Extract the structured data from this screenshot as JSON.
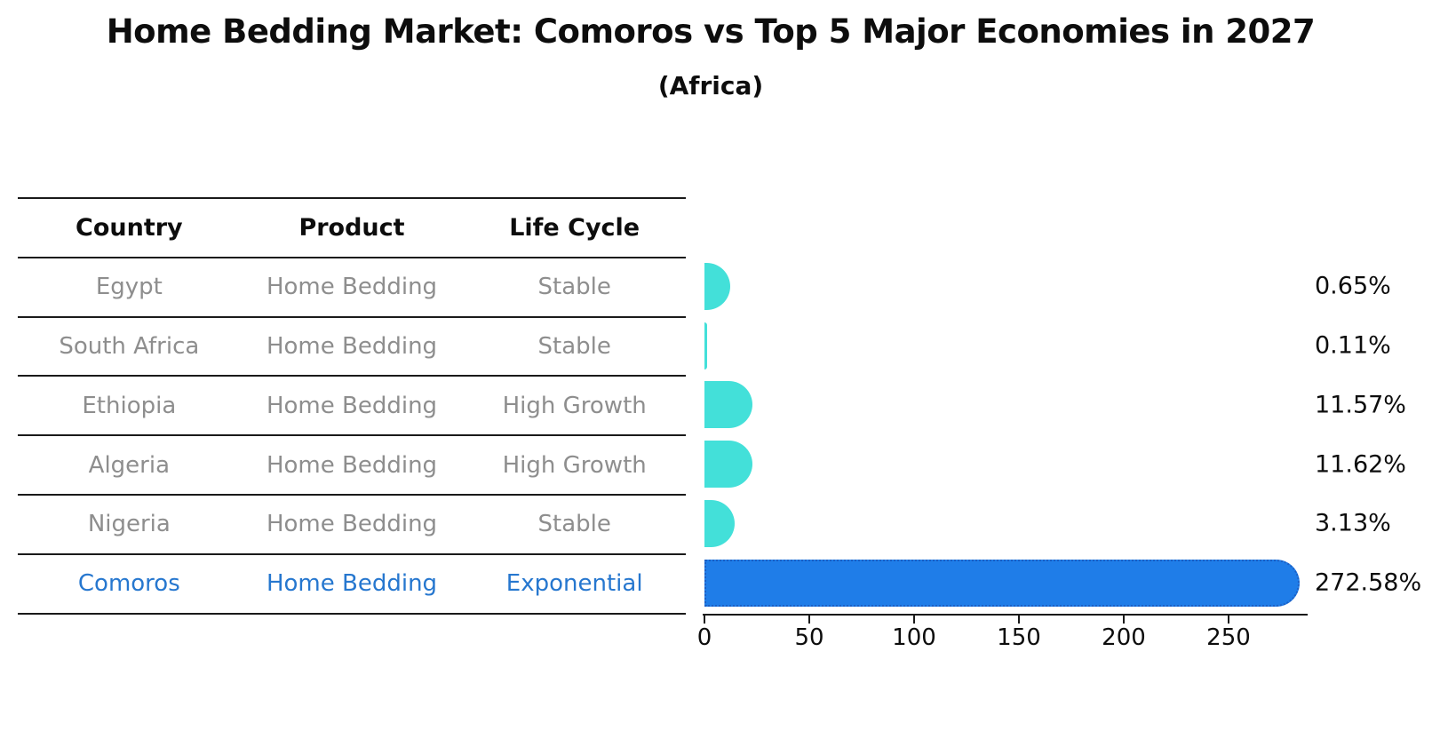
{
  "title": "Home Bedding Market: Comoros vs Top 5 Major Economies in 2027",
  "subtitle": "(Africa)",
  "table": {
    "headers": [
      "Country",
      "Product",
      "Life Cycle"
    ],
    "rows": [
      {
        "country": "Egypt",
        "product": "Home Bedding",
        "life_cycle": "Stable",
        "share": "0.65%"
      },
      {
        "country": "South Africa",
        "product": "Home Bedding",
        "life_cycle": "Stable",
        "share": "0.11%"
      },
      {
        "country": "Ethiopia",
        "product": "Home Bedding",
        "life_cycle": "High Growth",
        "share": "11.57%"
      },
      {
        "country": "Algeria",
        "product": "Home Bedding",
        "life_cycle": "High Growth",
        "share": "11.62%"
      },
      {
        "country": "Nigeria",
        "product": "Home Bedding",
        "life_cycle": "Stable",
        "share": "3.13%"
      },
      {
        "country": "Comoros",
        "product": "Home Bedding",
        "life_cycle": "Exponential",
        "share": "272.58%"
      }
    ]
  },
  "chart_data": {
    "type": "bar",
    "orientation": "horizontal",
    "title": "Home Bedding Market: Comoros vs Top 5 Major Economies in 2027",
    "subtitle": "(Africa)",
    "categories": [
      "Egypt",
      "South Africa",
      "Ethiopia",
      "Algeria",
      "Nigeria",
      "Comoros"
    ],
    "values": [
      0.65,
      0.11,
      11.57,
      11.62,
      3.13,
      272.58
    ],
    "value_labels": [
      "0.65%",
      "0.11%",
      "11.57%",
      "11.62%",
      "3.13%",
      "272.58%"
    ],
    "highlight_index": 5,
    "x_ticks": [
      0,
      50,
      100,
      150,
      200,
      250
    ],
    "xlim": [
      0,
      287
    ],
    "grid": false,
    "legend": "none",
    "xlabel": "",
    "ylabel": "",
    "colors": {
      "bar": "#43e0d9",
      "highlight_bar": "#1f7de8",
      "highlight_edge": "#1c5fc4",
      "highlight_text": "#2677cf",
      "table_text": "#8e8e8e",
      "axis": "#1a1a1a"
    }
  }
}
